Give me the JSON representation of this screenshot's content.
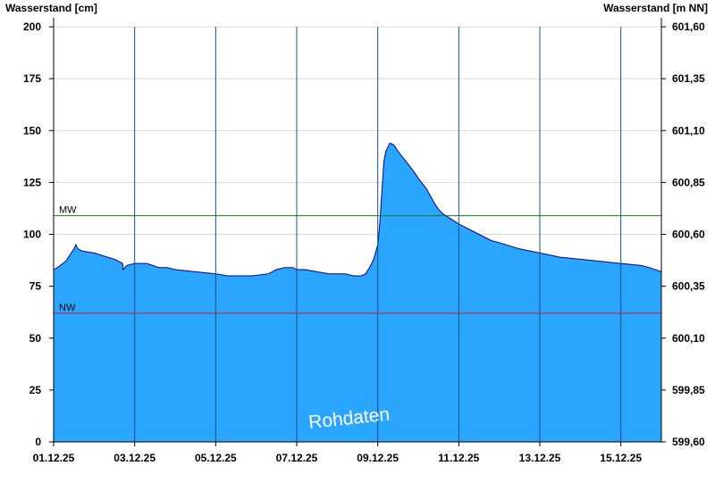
{
  "chart_data": {
    "type": "area",
    "ylabel_left": "Wasserstand [cm]",
    "ylabel_right": "Wasserstand [m NN]",
    "ylim_left": [
      0,
      200
    ],
    "yticks_left": [
      "0",
      "25",
      "50",
      "75",
      "100",
      "125",
      "150",
      "175",
      "200"
    ],
    "yticks_right": [
      "599,60",
      "599,85",
      "600,10",
      "600,35",
      "600,60",
      "600,85",
      "601,10",
      "601,35",
      "601,60"
    ],
    "xlim_days": [
      0,
      15
    ],
    "xticks": [
      "01.12.25",
      "03.12.25",
      "05.12.25",
      "07.12.25",
      "09.12.25",
      "11.12.25",
      "13.12.25",
      "15.12.25"
    ],
    "reference_lines": [
      {
        "label": "MW",
        "value": 109,
        "color": "#1a7a1a"
      },
      {
        "label": "NW",
        "value": 62,
        "color": "#c0203a"
      }
    ],
    "series": [
      {
        "fill_color": "#2ba6ff",
        "line_color": "#00008b",
        "x": [
          0,
          0.1,
          0.3,
          0.5,
          0.55,
          0.6,
          0.7,
          1.0,
          1.5,
          1.7,
          1.72,
          1.8,
          2.0,
          2.3,
          2.6,
          2.8,
          3.0,
          3.5,
          4.0,
          4.3,
          4.7,
          4.9,
          5.3,
          5.5,
          5.7,
          5.9,
          6.0,
          6.2,
          6.5,
          6.8,
          7.0,
          7.2,
          7.4,
          7.5,
          7.6,
          7.7,
          7.8,
          7.9,
          8.0,
          8.05,
          8.1,
          8.15,
          8.2,
          8.3,
          8.4,
          8.5,
          8.7,
          8.9,
          9.0,
          9.2,
          9.4,
          9.5,
          9.6,
          10.0,
          10.5,
          10.8,
          11.0,
          11.5,
          12.0,
          12.5,
          13.0,
          13.5,
          14.0,
          14.5,
          14.7,
          15.0
        ],
        "values": [
          83,
          84,
          87,
          93,
          95,
          93,
          92,
          91,
          88,
          86,
          83,
          85,
          86,
          86,
          84,
          84,
          83,
          82,
          81,
          80,
          80,
          80,
          81,
          83,
          84,
          84,
          83,
          83,
          82,
          81,
          81,
          81,
          80,
          80,
          80,
          81,
          84,
          88,
          95,
          105,
          120,
          135,
          140,
          144,
          143,
          140,
          135,
          130,
          127,
          122,
          115,
          112,
          110,
          105,
          100,
          97,
          96,
          93,
          91,
          89,
          88,
          87,
          86,
          85,
          84,
          82
        ]
      }
    ],
    "annotations": [
      "Rohdaten"
    ],
    "grid": "vertical lines at x ticks, horizontal lines at y ticks"
  }
}
